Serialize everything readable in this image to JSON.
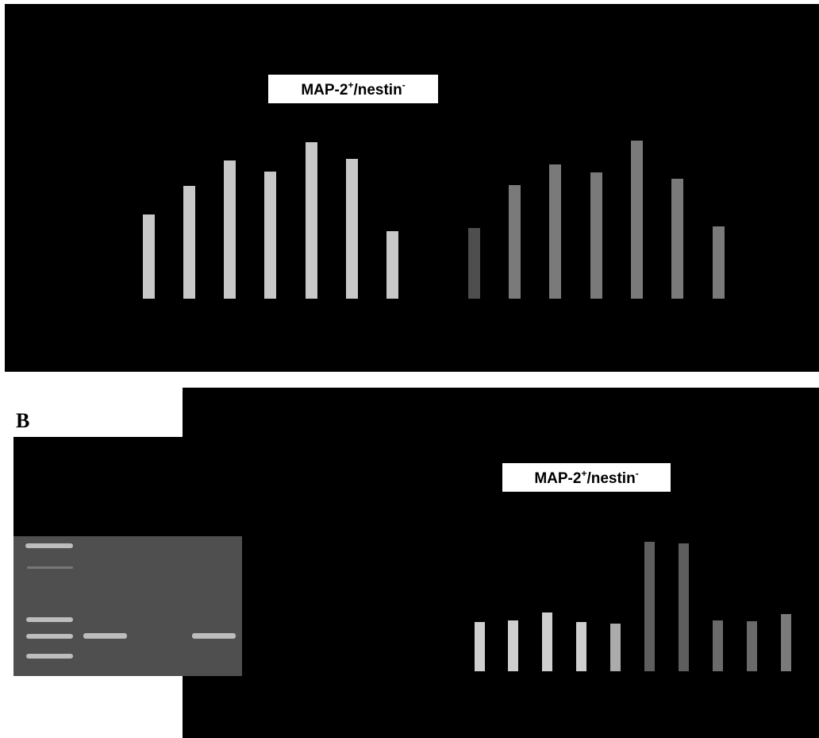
{
  "panel_a": {
    "label": {
      "main": "MAP-2",
      "sup1": "+",
      "rest": "/nestin",
      "sup2": "-"
    }
  },
  "panel_b": {
    "letter": "B",
    "label": {
      "main": "MAP-2",
      "sup1": "+",
      "rest": "/nestin",
      "sup2": "-"
    }
  }
}
